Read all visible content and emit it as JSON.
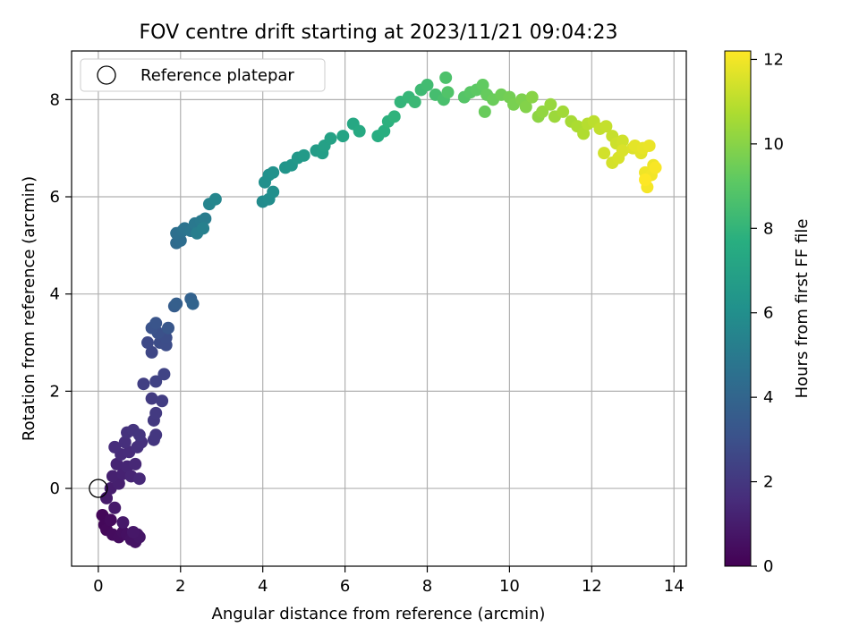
{
  "chart_data": {
    "type": "scatter",
    "title": "FOV centre drift starting at 2023/11/21 09:04:23",
    "xlabel": "Angular distance from reference (arcmin)",
    "ylabel": "Rotation from reference (arcmin)",
    "xlim": [
      -0.65,
      14.3
    ],
    "ylim": [
      -1.6,
      9.0
    ],
    "x_ticks": [
      "0",
      "2",
      "4",
      "6",
      "8",
      "10",
      "12",
      "14"
    ],
    "y_ticks": [
      "0",
      "2",
      "4",
      "6",
      "8"
    ],
    "grid": true,
    "legend": {
      "position": "top-left",
      "label": "Reference platepar"
    },
    "reference_point": {
      "x": 0,
      "y": 0
    },
    "colorbar": {
      "label": "Hours from first FF file",
      "range": [
        0,
        12.2
      ],
      "ticks": [
        "0",
        "2",
        "4",
        "6",
        "8",
        "10",
        "12"
      ],
      "colormap": "viridis"
    },
    "series": [
      {
        "values": [
          {
            "x": 0.1,
            "y": -0.55,
            "h": 0.2
          },
          {
            "x": 0.15,
            "y": -0.75,
            "h": 0.25
          },
          {
            "x": 0.2,
            "y": -0.85,
            "h": 0.3
          },
          {
            "x": 0.3,
            "y": -0.65,
            "h": 0.35
          },
          {
            "x": 0.35,
            "y": -0.95,
            "h": 0.4
          },
          {
            "x": 0.5,
            "y": -1.0,
            "h": 0.45
          },
          {
            "x": 0.6,
            "y": -0.9,
            "h": 0.5
          },
          {
            "x": 0.7,
            "y": -0.95,
            "h": 0.55
          },
          {
            "x": 0.8,
            "y": -1.05,
            "h": 0.6
          },
          {
            "x": 0.9,
            "y": -1.1,
            "h": 0.65
          },
          {
            "x": 0.95,
            "y": -0.95,
            "h": 0.7
          },
          {
            "x": 1.0,
            "y": -1.0,
            "h": 0.75
          },
          {
            "x": 0.85,
            "y": -0.9,
            "h": 0.8
          },
          {
            "x": 0.6,
            "y": -0.7,
            "h": 0.85
          },
          {
            "x": 0.4,
            "y": -0.4,
            "h": 0.9
          },
          {
            "x": 0.2,
            "y": -0.2,
            "h": 0.95
          },
          {
            "x": 0.3,
            "y": 0.0,
            "h": 1.0
          },
          {
            "x": 0.5,
            "y": 0.1,
            "h": 1.1
          },
          {
            "x": 0.35,
            "y": 0.25,
            "h": 1.15
          },
          {
            "x": 0.6,
            "y": 0.3,
            "h": 1.2
          },
          {
            "x": 0.45,
            "y": 0.5,
            "h": 1.25
          },
          {
            "x": 0.7,
            "y": 0.45,
            "h": 1.3
          },
          {
            "x": 0.8,
            "y": 0.25,
            "h": 1.35
          },
          {
            "x": 0.9,
            "y": 0.5,
            "h": 1.4
          },
          {
            "x": 1.0,
            "y": 0.2,
            "h": 1.45
          },
          {
            "x": 0.55,
            "y": 0.7,
            "h": 1.5
          },
          {
            "x": 0.75,
            "y": 0.75,
            "h": 1.55
          },
          {
            "x": 0.4,
            "y": 0.85,
            "h": 1.6
          },
          {
            "x": 0.65,
            "y": 0.95,
            "h": 1.65
          },
          {
            "x": 0.95,
            "y": 0.85,
            "h": 1.7
          },
          {
            "x": 1.05,
            "y": 0.95,
            "h": 1.75
          },
          {
            "x": 0.7,
            "y": 1.15,
            "h": 1.8
          },
          {
            "x": 0.85,
            "y": 1.2,
            "h": 1.85
          },
          {
            "x": 1.0,
            "y": 1.1,
            "h": 1.9
          },
          {
            "x": 1.35,
            "y": 1.0,
            "h": 1.95
          },
          {
            "x": 1.4,
            "y": 1.1,
            "h": 2.0
          },
          {
            "x": 1.35,
            "y": 1.4,
            "h": 2.05
          },
          {
            "x": 1.4,
            "y": 1.55,
            "h": 2.1
          },
          {
            "x": 1.3,
            "y": 1.85,
            "h": 2.15
          },
          {
            "x": 1.55,
            "y": 1.8,
            "h": 2.2
          },
          {
            "x": 1.1,
            "y": 2.15,
            "h": 2.3
          },
          {
            "x": 1.4,
            "y": 2.2,
            "h": 2.4
          },
          {
            "x": 1.6,
            "y": 2.35,
            "h": 2.5
          },
          {
            "x": 1.3,
            "y": 2.8,
            "h": 2.6
          },
          {
            "x": 1.2,
            "y": 3.0,
            "h": 2.7
          },
          {
            "x": 1.5,
            "y": 3.0,
            "h": 2.8
          },
          {
            "x": 1.65,
            "y": 2.95,
            "h": 2.85
          },
          {
            "x": 1.65,
            "y": 3.1,
            "h": 2.9
          },
          {
            "x": 1.45,
            "y": 3.2,
            "h": 3.0
          },
          {
            "x": 1.3,
            "y": 3.3,
            "h": 3.1
          },
          {
            "x": 1.4,
            "y": 3.4,
            "h": 3.2
          },
          {
            "x": 1.7,
            "y": 3.3,
            "h": 3.3
          },
          {
            "x": 1.85,
            "y": 3.75,
            "h": 3.6
          },
          {
            "x": 1.9,
            "y": 3.8,
            "h": 3.7
          },
          {
            "x": 2.25,
            "y": 3.9,
            "h": 3.85
          },
          {
            "x": 2.3,
            "y": 3.8,
            "h": 3.95
          },
          {
            "x": 1.9,
            "y": 5.05,
            "h": 4.3
          },
          {
            "x": 2.0,
            "y": 5.1,
            "h": 4.4
          },
          {
            "x": 1.9,
            "y": 5.25,
            "h": 4.5
          },
          {
            "x": 2.05,
            "y": 5.3,
            "h": 4.6
          },
          {
            "x": 2.1,
            "y": 5.35,
            "h": 4.7
          },
          {
            "x": 2.25,
            "y": 5.3,
            "h": 4.8
          },
          {
            "x": 2.35,
            "y": 5.45,
            "h": 4.9
          },
          {
            "x": 2.5,
            "y": 5.5,
            "h": 5.0
          },
          {
            "x": 2.6,
            "y": 5.55,
            "h": 5.1
          },
          {
            "x": 2.4,
            "y": 5.25,
            "h": 5.2
          },
          {
            "x": 2.55,
            "y": 5.35,
            "h": 5.3
          },
          {
            "x": 2.7,
            "y": 5.85,
            "h": 5.5
          },
          {
            "x": 2.85,
            "y": 5.95,
            "h": 5.6
          },
          {
            "x": 4.0,
            "y": 5.9,
            "h": 5.8
          },
          {
            "x": 4.15,
            "y": 5.95,
            "h": 5.9
          },
          {
            "x": 4.25,
            "y": 6.1,
            "h": 6.0
          },
          {
            "x": 4.05,
            "y": 6.3,
            "h": 6.05
          },
          {
            "x": 4.15,
            "y": 6.45,
            "h": 6.1
          },
          {
            "x": 4.25,
            "y": 6.5,
            "h": 6.15
          },
          {
            "x": 4.55,
            "y": 6.6,
            "h": 6.3
          },
          {
            "x": 4.7,
            "y": 6.65,
            "h": 6.4
          },
          {
            "x": 4.85,
            "y": 6.8,
            "h": 6.5
          },
          {
            "x": 5.0,
            "y": 6.85,
            "h": 6.6
          },
          {
            "x": 5.3,
            "y": 6.95,
            "h": 6.7
          },
          {
            "x": 5.45,
            "y": 6.9,
            "h": 6.8
          },
          {
            "x": 5.5,
            "y": 7.05,
            "h": 6.9
          },
          {
            "x": 5.65,
            "y": 7.2,
            "h": 7.0
          },
          {
            "x": 5.95,
            "y": 7.25,
            "h": 7.1
          },
          {
            "x": 6.2,
            "y": 7.5,
            "h": 7.3
          },
          {
            "x": 6.35,
            "y": 7.35,
            "h": 7.4
          },
          {
            "x": 6.8,
            "y": 7.25,
            "h": 7.6
          },
          {
            "x": 6.95,
            "y": 7.35,
            "h": 7.7
          },
          {
            "x": 7.05,
            "y": 7.55,
            "h": 7.8
          },
          {
            "x": 7.2,
            "y": 7.65,
            "h": 7.9
          },
          {
            "x": 7.35,
            "y": 7.95,
            "h": 8.0
          },
          {
            "x": 7.55,
            "y": 8.05,
            "h": 8.1
          },
          {
            "x": 7.7,
            "y": 7.95,
            "h": 8.2
          },
          {
            "x": 7.85,
            "y": 8.2,
            "h": 8.3
          },
          {
            "x": 8.0,
            "y": 8.3,
            "h": 8.4
          },
          {
            "x": 8.2,
            "y": 8.1,
            "h": 8.5
          },
          {
            "x": 8.4,
            "y": 8.0,
            "h": 8.6
          },
          {
            "x": 8.45,
            "y": 8.45,
            "h": 8.7
          },
          {
            "x": 8.5,
            "y": 8.15,
            "h": 8.8
          },
          {
            "x": 8.9,
            "y": 8.05,
            "h": 8.9
          },
          {
            "x": 9.05,
            "y": 8.15,
            "h": 9.0
          },
          {
            "x": 9.2,
            "y": 8.2,
            "h": 9.1
          },
          {
            "x": 9.35,
            "y": 8.3,
            "h": 9.2
          },
          {
            "x": 9.45,
            "y": 8.1,
            "h": 9.3
          },
          {
            "x": 9.4,
            "y": 7.75,
            "h": 9.35
          },
          {
            "x": 9.6,
            "y": 8.0,
            "h": 9.4
          },
          {
            "x": 9.8,
            "y": 8.1,
            "h": 9.5
          },
          {
            "x": 10.0,
            "y": 8.05,
            "h": 9.6
          },
          {
            "x": 10.1,
            "y": 7.9,
            "h": 9.7
          },
          {
            "x": 10.3,
            "y": 8.0,
            "h": 9.8
          },
          {
            "x": 10.4,
            "y": 7.85,
            "h": 9.9
          },
          {
            "x": 10.55,
            "y": 8.05,
            "h": 10.0
          },
          {
            "x": 10.7,
            "y": 7.65,
            "h": 10.1
          },
          {
            "x": 10.8,
            "y": 7.75,
            "h": 10.2
          },
          {
            "x": 11.0,
            "y": 7.9,
            "h": 10.3
          },
          {
            "x": 11.1,
            "y": 7.65,
            "h": 10.4
          },
          {
            "x": 11.3,
            "y": 7.75,
            "h": 10.5
          },
          {
            "x": 11.5,
            "y": 7.55,
            "h": 10.6
          },
          {
            "x": 11.65,
            "y": 7.45,
            "h": 10.7
          },
          {
            "x": 11.8,
            "y": 7.3,
            "h": 10.8
          },
          {
            "x": 11.9,
            "y": 7.5,
            "h": 10.9
          },
          {
            "x": 12.05,
            "y": 7.55,
            "h": 11.0
          },
          {
            "x": 12.2,
            "y": 7.4,
            "h": 11.1
          },
          {
            "x": 12.35,
            "y": 7.45,
            "h": 11.15
          },
          {
            "x": 12.5,
            "y": 7.25,
            "h": 11.2
          },
          {
            "x": 12.6,
            "y": 7.1,
            "h": 11.3
          },
          {
            "x": 12.75,
            "y": 7.15,
            "h": 11.35
          },
          {
            "x": 12.3,
            "y": 6.9,
            "h": 11.4
          },
          {
            "x": 12.5,
            "y": 6.7,
            "h": 11.45
          },
          {
            "x": 12.65,
            "y": 6.8,
            "h": 11.5
          },
          {
            "x": 12.75,
            "y": 6.95,
            "h": 11.55
          },
          {
            "x": 13.0,
            "y": 7.0,
            "h": 11.6
          },
          {
            "x": 13.2,
            "y": 6.9,
            "h": 11.7
          },
          {
            "x": 13.05,
            "y": 7.05,
            "h": 11.75
          },
          {
            "x": 13.25,
            "y": 7.0,
            "h": 11.8
          },
          {
            "x": 13.4,
            "y": 7.05,
            "h": 11.85
          },
          {
            "x": 13.5,
            "y": 6.65,
            "h": 11.9
          },
          {
            "x": 13.3,
            "y": 6.5,
            "h": 11.95
          },
          {
            "x": 13.45,
            "y": 6.45,
            "h": 12.0
          },
          {
            "x": 13.35,
            "y": 6.2,
            "h": 12.05
          },
          {
            "x": 13.55,
            "y": 6.6,
            "h": 12.1
          },
          {
            "x": 13.3,
            "y": 6.35,
            "h": 12.2
          }
        ]
      }
    ]
  }
}
